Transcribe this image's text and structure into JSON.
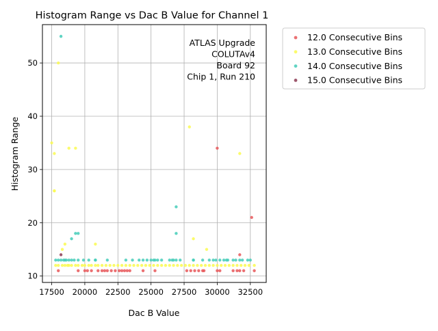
{
  "chart_data": {
    "type": "scatter",
    "title": "Histogram Range vs Dac B Value for Channel 1",
    "xlabel": "Dac B Value",
    "ylabel": "Histogram Range",
    "xlim": [
      16800,
      33700
    ],
    "ylim": [
      8.8,
      57.2
    ],
    "xticks": [
      17500,
      20000,
      22500,
      25000,
      27500,
      30000,
      32500
    ],
    "xtick_labels": [
      "17500",
      "20000",
      "22500",
      "25000",
      "27500",
      "30000",
      "32500"
    ],
    "yticks": [
      10,
      20,
      30,
      40,
      50
    ],
    "ytick_labels": [
      "10",
      "20",
      "30",
      "40",
      "50"
    ],
    "grid": true,
    "legend_position": "outside-right",
    "annotation": [
      "ATLAS Upgrade",
      "COLUTAv4",
      "Board 92",
      "Chip 1, Run 210"
    ],
    "series": [
      {
        "name": "12.0 Consecutive Bins",
        "color": "#e8585a",
        "x": [
          18000,
          19500,
          20000,
          20200,
          20500,
          21000,
          21300,
          21500,
          21700,
          22000,
          22300,
          22600,
          22800,
          23000,
          23200,
          23400,
          24400,
          25300,
          27700,
          28000,
          28300,
          28600,
          28900,
          29000,
          30000,
          30200,
          31200,
          31500,
          31700,
          32000,
          32800,
          30000,
          31700,
          32600
        ],
        "y": [
          11,
          11,
          11,
          11,
          11,
          11,
          11,
          11,
          11,
          11,
          11,
          11,
          11,
          11,
          11,
          11,
          11,
          11,
          11,
          11,
          11,
          11,
          11,
          11,
          11,
          11,
          11,
          11,
          11,
          11,
          11,
          34,
          14,
          21
        ]
      },
      {
        "name": "13.0 Consecutive Bins",
        "color": "#fafa52",
        "x": [
          17500,
          17700,
          17800,
          18000,
          18300,
          18500,
          18700,
          18800,
          19000,
          19300,
          19500,
          19800,
          20000,
          20300,
          20500,
          20800,
          21000,
          21300,
          21600,
          21900,
          22200,
          22500,
          22800,
          23100,
          23400,
          23700,
          24000,
          24300,
          24600,
          24900,
          25200,
          25500,
          25800,
          26100,
          26400,
          26700,
          27000,
          27300,
          27600,
          27900,
          28200,
          28500,
          28800,
          29100,
          29400,
          29700,
          30000,
          30300,
          30600,
          30900,
          31200,
          31500,
          31800,
          32100,
          32400,
          32800,
          17700,
          17700,
          18000,
          18300,
          18500,
          18800,
          19300,
          20800,
          27900,
          28200,
          29200,
          31700
        ],
        "y": [
          35,
          33,
          12,
          12,
          12,
          12,
          12,
          12,
          12,
          12,
          12,
          12,
          12,
          12,
          12,
          12,
          12,
          12,
          12,
          12,
          12,
          12,
          12,
          12,
          12,
          12,
          12,
          12,
          12,
          12,
          12,
          12,
          12,
          12,
          12,
          12,
          12,
          12,
          12,
          12,
          12,
          12,
          12,
          12,
          12,
          12,
          12,
          12,
          12,
          12,
          12,
          12,
          12,
          12,
          12,
          12,
          26,
          26,
          50,
          15,
          16,
          34,
          34,
          16,
          38,
          17,
          15,
          33
        ]
      },
      {
        "name": "14.0 Consecutive Bins",
        "color": "#44ccb8",
        "x": [
          17800,
          18000,
          18200,
          18400,
          18600,
          18800,
          19000,
          19200,
          19500,
          19900,
          20300,
          20800,
          21700,
          23100,
          23600,
          24100,
          24400,
          24700,
          25000,
          25300,
          25500,
          25800,
          26400,
          26600,
          26900,
          27200,
          28200,
          28900,
          29400,
          29700,
          29900,
          30200,
          30500,
          30800,
          31200,
          31400,
          31700,
          31900,
          32300,
          32500,
          18200,
          19300,
          19500,
          19000,
          26900,
          26900,
          18500,
          20800,
          25200,
          26700,
          28200,
          30700
        ],
        "y": [
          13,
          13,
          13,
          13,
          13,
          13,
          13,
          13,
          13,
          13,
          13,
          13,
          13,
          13,
          13,
          13,
          13,
          13,
          13,
          13,
          13,
          13,
          13,
          13,
          13,
          13,
          13,
          13,
          13,
          13,
          13,
          13,
          13,
          13,
          13,
          13,
          13,
          13,
          13,
          13,
          55,
          18,
          18,
          17,
          23,
          18,
          13,
          13,
          13,
          13,
          13,
          13
        ]
      },
      {
        "name": "15.0 Consecutive Bins",
        "color": "#8c3a52",
        "x": [
          18200
        ],
        "y": [
          14
        ]
      }
    ]
  }
}
